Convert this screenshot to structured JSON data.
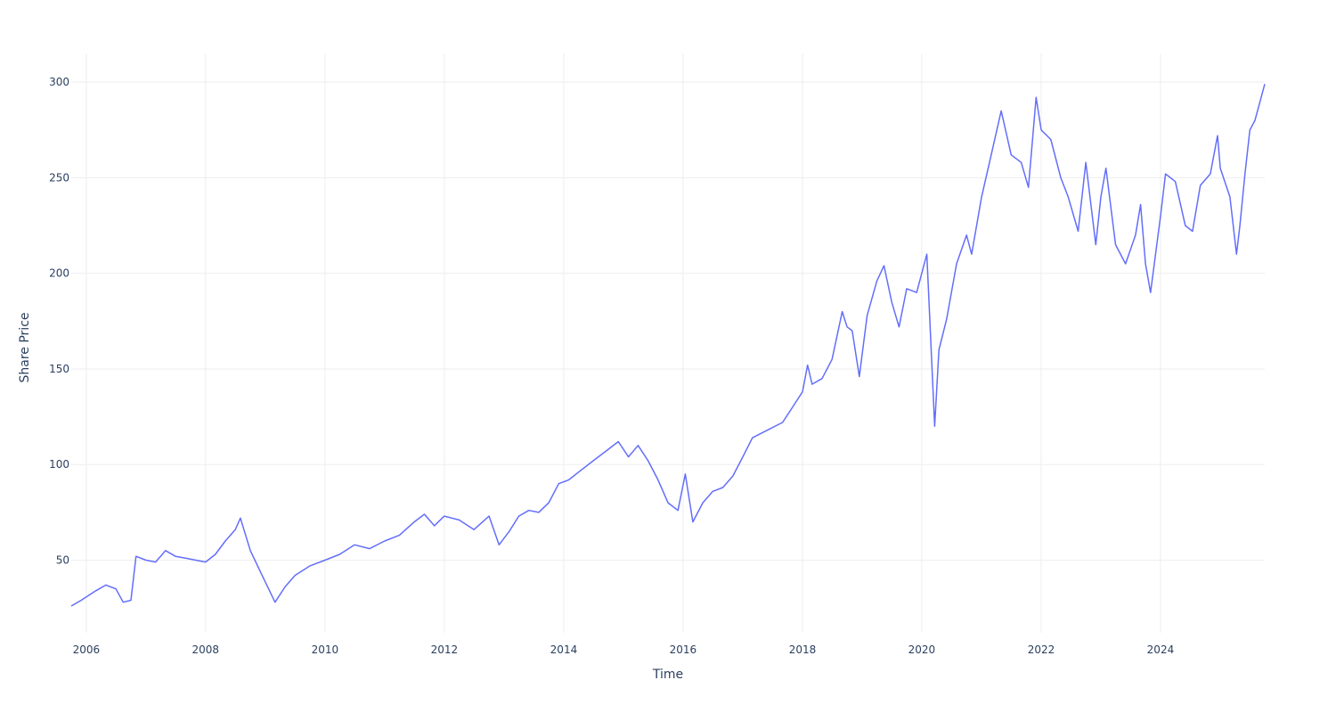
{
  "chart_data": {
    "type": "line",
    "xlabel": "Time",
    "ylabel": "Share Price",
    "x_ticks": [
      "2006",
      "2008",
      "2010",
      "2012",
      "2014",
      "2016",
      "2018",
      "2020",
      "2022",
      "2024"
    ],
    "y_ticks": [
      50,
      100,
      150,
      200,
      250,
      300
    ],
    "xlim": [
      "2005-10-01",
      "2025-09-30"
    ],
    "ylim": [
      12,
      315
    ],
    "grid": true,
    "legend": "none",
    "colors": {
      "line": "#636efa",
      "grid": "#eeeeee",
      "text": "#2a3f5f"
    },
    "series": [
      {
        "x": [
          "2005-10-01",
          "2005-12-01",
          "2006-03-01",
          "2006-05-01",
          "2006-07-01",
          "2006-08-15",
          "2006-10-01",
          "2006-11-01",
          "2007-01-01",
          "2007-03-01",
          "2007-05-01",
          "2007-07-01",
          "2007-09-01",
          "2007-11-01",
          "2008-01-01",
          "2008-03-01",
          "2008-05-01",
          "2008-07-01",
          "2008-08-01",
          "2008-10-01",
          "2008-12-01",
          "2009-03-01",
          "2009-05-01",
          "2009-07-01",
          "2009-10-01",
          "2010-01-01",
          "2010-04-01",
          "2010-07-01",
          "2010-10-01",
          "2011-01-01",
          "2011-04-01",
          "2011-07-01",
          "2011-09-01",
          "2011-11-01",
          "2012-01-01",
          "2012-04-01",
          "2012-07-01",
          "2012-10-01",
          "2012-12-01",
          "2013-02-01",
          "2013-04-01",
          "2013-06-01",
          "2013-08-01",
          "2013-10-01",
          "2013-12-01",
          "2014-02-01",
          "2014-04-01",
          "2014-07-01",
          "2014-10-01",
          "2014-12-01",
          "2015-02-01",
          "2015-04-01",
          "2015-06-01",
          "2015-08-01",
          "2015-10-01",
          "2015-12-01",
          "2016-01-15",
          "2016-03-01",
          "2016-05-01",
          "2016-07-01",
          "2016-09-01",
          "2016-11-01",
          "2017-01-01",
          "2017-03-01",
          "2017-06-01",
          "2017-09-01",
          "2017-11-01",
          "2018-01-01",
          "2018-02-01",
          "2018-03-01",
          "2018-05-01",
          "2018-07-01",
          "2018-09-01",
          "2018-10-01",
          "2018-11-01",
          "2018-12-15",
          "2019-02-01",
          "2019-04-01",
          "2019-05-15",
          "2019-07-01",
          "2019-08-15",
          "2019-10-01",
          "2019-12-01",
          "2020-02-01",
          "2020-03-20",
          "2020-04-15",
          "2020-06-01",
          "2020-08-01",
          "2020-10-01",
          "2020-11-01",
          "2021-01-01",
          "2021-03-01",
          "2021-05-01",
          "2021-07-01",
          "2021-09-01",
          "2021-10-15",
          "2021-12-01",
          "2022-01-01",
          "2022-03-01",
          "2022-05-01",
          "2022-06-15",
          "2022-08-15",
          "2022-10-01",
          "2022-12-01",
          "2023-01-01",
          "2023-02-01",
          "2023-04-01",
          "2023-06-01",
          "2023-08-01",
          "2023-09-01",
          "2023-10-01",
          "2023-11-01",
          "2024-01-01",
          "2024-02-01",
          "2024-04-01",
          "2024-06-01",
          "2024-07-15",
          "2024-09-01",
          "2024-11-01",
          "2024-12-15",
          "2025-01-01",
          "2025-03-01",
          "2025-04-10",
          "2025-05-01",
          "2025-06-01",
          "2025-07-01",
          "2025-08-01",
          "2025-09-30"
        ],
        "y": [
          26,
          29,
          34,
          37,
          35,
          28,
          29,
          52,
          50,
          49,
          55,
          52,
          51,
          50,
          49,
          53,
          60,
          66,
          72,
          55,
          44,
          28,
          36,
          42,
          47,
          50,
          53,
          58,
          56,
          60,
          63,
          70,
          74,
          68,
          73,
          71,
          66,
          73,
          58,
          65,
          73,
          76,
          75,
          80,
          90,
          92,
          96,
          102,
          108,
          112,
          104,
          110,
          102,
          92,
          80,
          76,
          95,
          70,
          80,
          86,
          88,
          94,
          104,
          114,
          118,
          122,
          130,
          138,
          152,
          142,
          145,
          155,
          180,
          172,
          170,
          146,
          178,
          196,
          204,
          185,
          172,
          192,
          190,
          210,
          120,
          160,
          176,
          205,
          220,
          210,
          240,
          262,
          285,
          262,
          258,
          245,
          292,
          275,
          270,
          250,
          240,
          222,
          258,
          215,
          240,
          255,
          215,
          205,
          220,
          236,
          205,
          190,
          230,
          252,
          248,
          225,
          222,
          246,
          252,
          272,
          255,
          240,
          210,
          225,
          252,
          275,
          280,
          299
        ]
      }
    ]
  }
}
